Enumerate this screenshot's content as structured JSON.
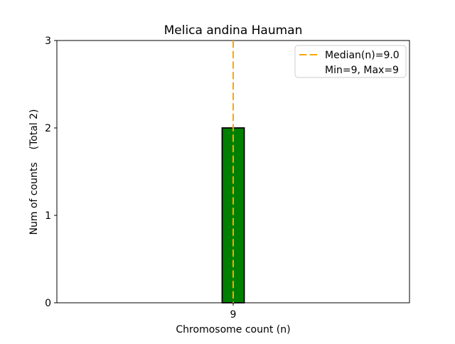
{
  "figure": {
    "background": "#ffffff"
  },
  "chart_data": {
    "type": "bar",
    "title": "Melica andina Hauman",
    "xlabel": "Chromosome count (n)",
    "ylabel": "Num of counts    (Total 2)",
    "categories": [
      "9"
    ],
    "values": [
      2
    ],
    "total_counts": 2,
    "ylim": [
      0,
      3
    ],
    "yticks": [
      0,
      1,
      2,
      3
    ],
    "grid": false,
    "bar_color": "#008000",
    "bar_edge_color": "#000000",
    "median_line": {
      "value": 9.0,
      "color": "#FFA500",
      "style": "dashed"
    },
    "legend": {
      "position": "upper-right",
      "entries": [
        {
          "marker": "dashed-line",
          "marker_color": "#FFA500",
          "label": "Median(n)=9.0"
        },
        {
          "marker": "none",
          "label": "Min=9, Max=9"
        }
      ]
    }
  }
}
